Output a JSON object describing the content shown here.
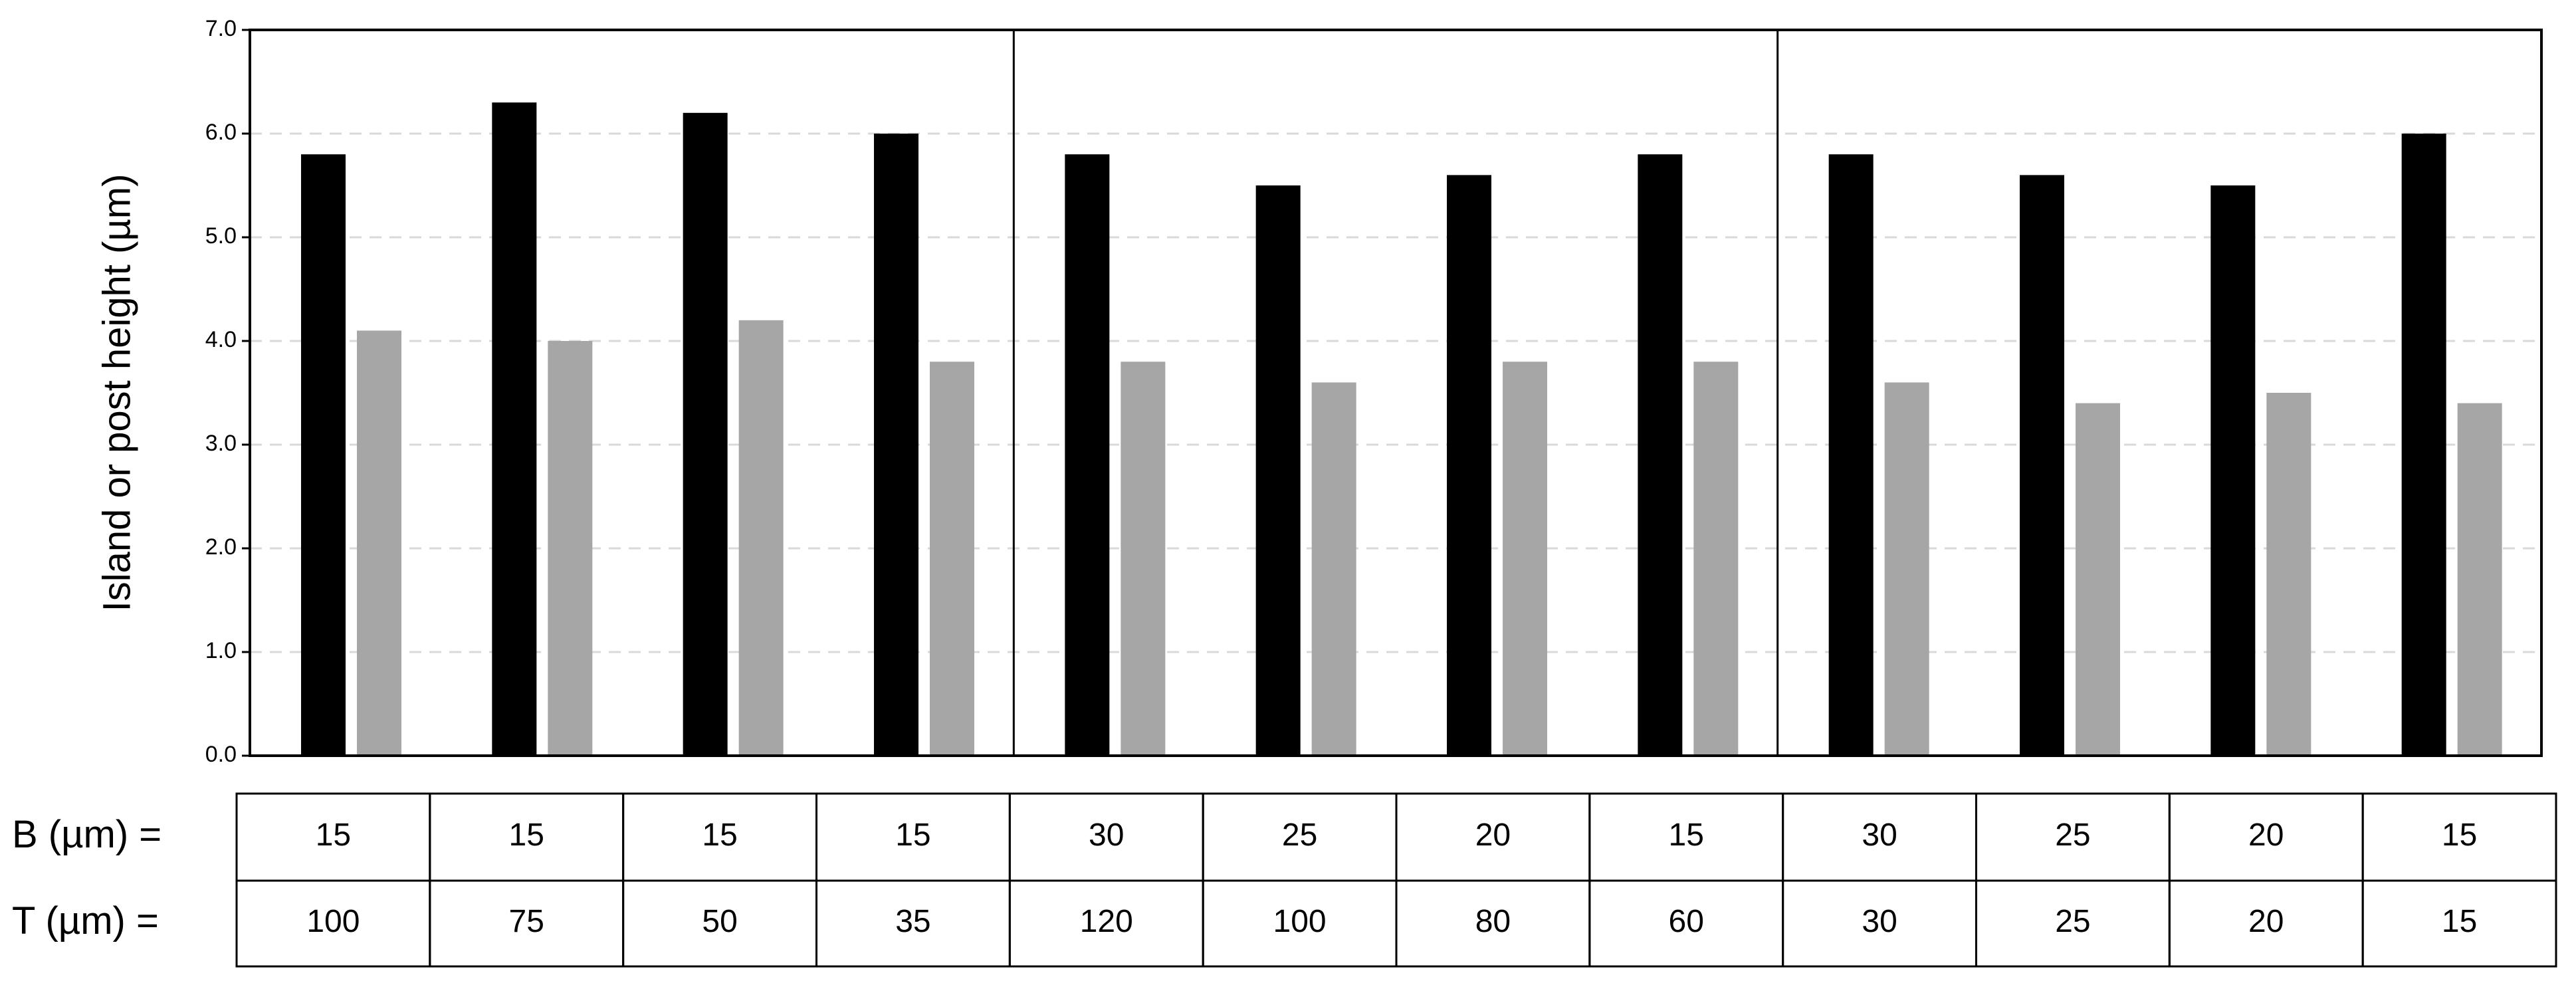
{
  "chart_data": {
    "type": "bar",
    "y_label": "Island or post height (µm)",
    "series": [
      {
        "color": "#000000",
        "values": [
          5.8,
          6.3,
          6.2,
          6.0,
          5.8,
          5.5,
          5.6,
          5.8,
          5.8,
          5.6,
          5.5,
          6.0
        ]
      },
      {
        "color": "#a6a6a6",
        "values": [
          4.1,
          4.0,
          4.2,
          3.8,
          3.8,
          3.6,
          3.8,
          3.8,
          3.6,
          3.4,
          3.5,
          3.4
        ]
      }
    ],
    "ylim": [
      0,
      7
    ],
    "yticks": [
      {
        "value": 0,
        "label": "0.0"
      },
      {
        "value": 1,
        "label": "1.0"
      },
      {
        "value": 2,
        "label": "2.0"
      },
      {
        "value": 3,
        "label": "3.0"
      },
      {
        "value": 4,
        "label": "4.0"
      },
      {
        "value": 5,
        "label": "5.0"
      },
      {
        "value": 6,
        "label": "6.0"
      },
      {
        "value": 7,
        "label": "7.0"
      }
    ],
    "grid": true,
    "table": {
      "rows": [
        {
          "label": "B (µm) =",
          "values": [
            15,
            15,
            15,
            15,
            30,
            25,
            20,
            15,
            30,
            25,
            20,
            15
          ]
        },
        {
          "label": "T (µm) =",
          "values": [
            100,
            75,
            50,
            35,
            120,
            100,
            80,
            60,
            30,
            25,
            20,
            15
          ]
        }
      ]
    }
  }
}
